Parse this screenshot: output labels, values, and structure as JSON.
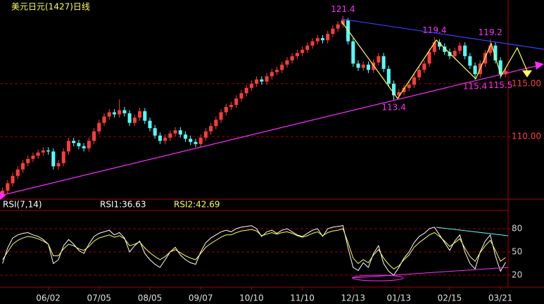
{
  "chart_data": {
    "type": "candlestick",
    "title": "美元日元(1427)日线",
    "up_color": "#ff3c3c",
    "down_color": "#54ffff",
    "grid": true,
    "ylim": [
      104.1,
      122.9
    ],
    "yticks": [
      {
        "value": 110,
        "label": "110.00"
      },
      {
        "value": 115,
        "label": "115.00"
      }
    ],
    "annotations": [
      121.4,
      119.4,
      119.2,
      113.4,
      115.4,
      115.5
    ],
    "categories": [
      null,
      null,
      null,
      null,
      null,
      null,
      null,
      null,
      null,
      "06/02",
      null,
      null,
      null,
      null,
      null,
      null,
      null,
      null,
      null,
      "07/05",
      null,
      null,
      null,
      null,
      null,
      null,
      null,
      null,
      null,
      "08/05",
      null,
      null,
      null,
      null,
      null,
      null,
      null,
      null,
      null,
      "09/07",
      null,
      null,
      null,
      null,
      null,
      null,
      null,
      null,
      null,
      "10/10",
      null,
      null,
      null,
      null,
      null,
      null,
      null,
      null,
      null,
      "11/10",
      null,
      null,
      null,
      null,
      null,
      null,
      null,
      null,
      null,
      "12/13",
      null,
      null,
      null,
      null,
      null,
      null,
      null,
      null,
      "01/13",
      null,
      null,
      null,
      null,
      null,
      null,
      null,
      null,
      null,
      "02/15",
      null,
      null,
      null,
      null,
      null,
      null,
      null,
      null,
      null,
      "03/21",
      null
    ],
    "open": [
      104.5,
      104.9,
      105.6,
      106.3,
      106.9,
      107.5,
      107.9,
      108.2,
      108.5,
      108.7,
      108.6,
      107.2,
      107.5,
      108.6,
      109.6,
      109.4,
      109.1,
      108.9,
      109.6,
      110.5,
      111.3,
      111.9,
      112.3,
      112.1,
      112.5,
      112.2,
      111.3,
      111.8,
      112.4,
      111.5,
      110.8,
      110.1,
      109.6,
      109.9,
      110.3,
      110.6,
      110.2,
      109.8,
      109.5,
      109.3,
      109.9,
      110.5,
      111.0,
      111.6,
      112.3,
      112.8,
      113.0,
      113.6,
      114.1,
      114.6,
      115.0,
      115.4,
      115.2,
      115.7,
      116.1,
      116.3,
      116.8,
      117.2,
      117.6,
      117.9,
      118.2,
      118.6,
      119.0,
      119.3,
      119.1,
      119.7,
      120.2,
      120.6,
      121.0,
      119.0,
      116.9,
      116.5,
      116.8,
      116.3,
      117.0,
      117.6,
      116.4,
      115.0,
      113.9,
      114.2,
      114.6,
      114.9,
      115.6,
      116.3,
      116.9,
      118.0,
      118.9,
      118.5,
      118.0,
      117.6,
      118.1,
      118.6,
      117.6,
      116.7,
      115.9,
      116.9,
      117.9,
      118.6,
      117.2,
      115.9
    ],
    "high": [
      105.2,
      105.9,
      106.6,
      107.2,
      107.8,
      108.2,
      108.5,
      108.8,
      109.0,
      109.0,
      108.9,
      107.8,
      108.9,
      109.9,
      109.9,
      109.7,
      109.4,
      109.9,
      110.8,
      111.6,
      112.2,
      112.6,
      112.6,
      113.5,
      112.8,
      112.5,
      112.1,
      112.7,
      112.7,
      111.8,
      111.1,
      110.4,
      110.2,
      110.6,
      110.9,
      110.9,
      110.5,
      110.1,
      109.8,
      110.2,
      110.8,
      111.3,
      111.9,
      112.6,
      113.1,
      113.3,
      113.9,
      114.4,
      114.9,
      115.3,
      115.7,
      115.7,
      116.0,
      116.4,
      116.6,
      117.1,
      117.5,
      117.9,
      118.2,
      118.5,
      118.9,
      119.3,
      119.6,
      119.6,
      120.0,
      120.5,
      120.9,
      121.4,
      121.2,
      119.3,
      117.2,
      117.1,
      117.1,
      117.3,
      117.9,
      117.9,
      116.7,
      115.3,
      114.5,
      114.9,
      115.2,
      115.9,
      116.6,
      117.2,
      118.3,
      119.4,
      119.2,
      118.8,
      118.3,
      118.4,
      118.9,
      118.9,
      117.9,
      117.0,
      117.2,
      118.2,
      119.2,
      118.9,
      117.5,
      116.5
    ],
    "low": [
      104.2,
      104.6,
      105.3,
      106.0,
      106.6,
      107.2,
      107.6,
      107.9,
      108.2,
      108.3,
      106.9,
      106.9,
      107.2,
      108.3,
      109.1,
      108.8,
      108.6,
      108.6,
      109.3,
      110.2,
      111.0,
      111.6,
      111.8,
      111.8,
      111.9,
      111.0,
      111.0,
      111.5,
      111.2,
      110.5,
      109.8,
      109.3,
      109.3,
      109.6,
      110.0,
      109.9,
      109.5,
      109.2,
      109.0,
      109.0,
      109.6,
      110.2,
      110.7,
      111.3,
      112.0,
      112.5,
      112.7,
      113.3,
      113.8,
      114.3,
      114.7,
      114.9,
      114.9,
      115.4,
      115.8,
      116.0,
      116.5,
      116.9,
      117.3,
      117.6,
      117.9,
      118.3,
      118.7,
      118.8,
      118.8,
      119.4,
      119.9,
      120.3,
      118.7,
      116.6,
      116.2,
      116.2,
      116.0,
      116.0,
      116.7,
      116.1,
      114.7,
      113.4,
      113.6,
      113.9,
      114.3,
      114.6,
      115.3,
      116.0,
      116.6,
      117.7,
      118.2,
      117.7,
      117.3,
      117.3,
      117.8,
      117.3,
      116.4,
      115.4,
      115.6,
      116.6,
      117.6,
      116.9,
      115.5,
      115.6
    ],
    "close": [
      104.9,
      105.6,
      106.3,
      106.9,
      107.5,
      107.9,
      108.2,
      108.5,
      108.7,
      108.6,
      107.2,
      107.5,
      108.6,
      109.6,
      109.4,
      109.1,
      108.9,
      109.6,
      110.5,
      111.3,
      111.9,
      112.3,
      112.1,
      112.5,
      112.2,
      111.3,
      111.8,
      112.4,
      111.5,
      110.8,
      110.1,
      109.6,
      109.9,
      110.3,
      110.6,
      110.2,
      109.8,
      109.5,
      109.3,
      109.9,
      110.5,
      111.0,
      111.6,
      112.3,
      112.8,
      113.0,
      113.6,
      114.1,
      114.6,
      115.0,
      115.4,
      115.2,
      115.7,
      116.1,
      116.3,
      116.8,
      117.2,
      117.6,
      117.9,
      118.2,
      118.6,
      119.0,
      119.3,
      119.1,
      119.7,
      120.2,
      120.6,
      121.0,
      119.0,
      116.9,
      116.5,
      116.8,
      116.3,
      117.0,
      117.6,
      116.4,
      115.0,
      113.9,
      114.2,
      114.6,
      114.9,
      115.6,
      116.3,
      116.9,
      118.0,
      118.9,
      118.5,
      118.0,
      117.6,
      118.1,
      118.6,
      117.6,
      116.7,
      115.9,
      116.9,
      117.9,
      118.6,
      117.2,
      115.9,
      116.2
    ],
    "indicator": {
      "type": "line",
      "title": "RSI(7,14)",
      "ylim": [
        5,
        100
      ],
      "yticks": [
        20,
        50,
        80
      ],
      "series": [
        {
          "name": "RSI1",
          "readout": "RSI1:36.63",
          "color": "#ffffff",
          "values": [
            35,
            55,
            68,
            72,
            74,
            75,
            72,
            70,
            66,
            60,
            35,
            40,
            58,
            66,
            60,
            52,
            48,
            60,
            70,
            74,
            76,
            78,
            72,
            75,
            68,
            50,
            58,
            64,
            48,
            40,
            34,
            30,
            40,
            50,
            56,
            46,
            40,
            36,
            34,
            50,
            62,
            68,
            72,
            76,
            78,
            76,
            80,
            82,
            83,
            84,
            80,
            70,
            76,
            78,
            74,
            78,
            80,
            76,
            72,
            70,
            74,
            78,
            80,
            70,
            80,
            82,
            83,
            84,
            55,
            30,
            26,
            36,
            30,
            48,
            58,
            35,
            25,
            20,
            30,
            42,
            50,
            62,
            70,
            74,
            80,
            82,
            72,
            62,
            52,
            64,
            72,
            50,
            35,
            28,
            50,
            64,
            72,
            45,
            25,
            36.63
          ]
        },
        {
          "name": "RSI2",
          "readout": "RSI2:42.69",
          "color": "#ffff54",
          "values": [
            40,
            50,
            60,
            65,
            68,
            70,
            69,
            67,
            64,
            60,
            45,
            45,
            54,
            60,
            58,
            54,
            52,
            57,
            64,
            68,
            70,
            72,
            69,
            71,
            67,
            58,
            60,
            63,
            55,
            49,
            44,
            40,
            44,
            50,
            53,
            49,
            45,
            42,
            40,
            48,
            56,
            61,
            65,
            69,
            72,
            72,
            75,
            77,
            78,
            79,
            77,
            71,
            73,
            75,
            73,
            75,
            76,
            74,
            71,
            69,
            71,
            74,
            76,
            71,
            75,
            77,
            78,
            80,
            62,
            42,
            35,
            40,
            36,
            46,
            53,
            42,
            34,
            28,
            32,
            40,
            46,
            56,
            62,
            67,
            72,
            75,
            70,
            64,
            57,
            62,
            67,
            55,
            44,
            38,
            49,
            58,
            65,
            52,
            38,
            42.69
          ]
        }
      ]
    }
  }
}
